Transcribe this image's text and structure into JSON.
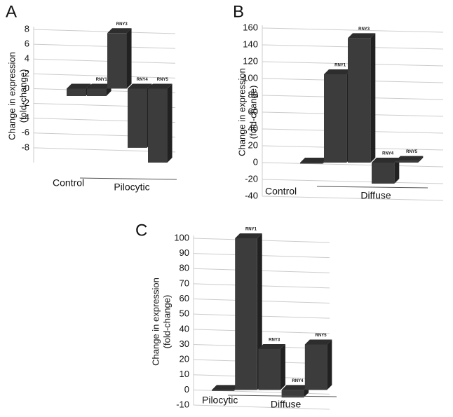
{
  "chart_data": [
    {
      "type": "bar3d",
      "panel": "A",
      "ylabel": [
        "Change in expression",
        "(fold-change)"
      ],
      "categories": [
        "Control",
        "RNY1",
        "RNY3",
        "RNY4",
        "RNY5"
      ],
      "values": [
        -1,
        -1,
        7.5,
        -8,
        -10
      ],
      "group_label": "Pilocytic",
      "color": "#3c3c3c",
      "ylim": [
        -10,
        8
      ],
      "yticks": [
        8,
        6,
        4,
        2,
        0,
        -2,
        -4,
        -6,
        -8
      ],
      "grid": true
    },
    {
      "type": "bar3d",
      "panel": "B",
      "ylabel": [
        "Change in expression",
        "(fold-change)"
      ],
      "categories": [
        "Control",
        "RNY1",
        "RNY3",
        "RNY4",
        "RNY5"
      ],
      "values": [
        0,
        105,
        148,
        -25,
        2
      ],
      "group_label": "Diffuse",
      "color": "#3c3c3c",
      "ylim": [
        -40,
        160
      ],
      "yticks": [
        160,
        140,
        120,
        100,
        80,
        60,
        40,
        20,
        0,
        -20,
        -40
      ],
      "grid": true
    },
    {
      "type": "bar3d",
      "panel": "C",
      "ylabel": [
        "Change in expression",
        "(fold-change)"
      ],
      "categories": [
        "Pilocytic",
        "RNY1",
        "RNY3",
        "RNY4",
        "RNY5"
      ],
      "values": [
        0,
        100,
        27,
        -5,
        30
      ],
      "group_label": "Diffuse",
      "color": "#3c3c3c",
      "ylim": [
        -10,
        100
      ],
      "yticks": [
        100,
        90,
        80,
        70,
        60,
        50,
        40,
        30,
        20,
        10,
        0,
        -10
      ],
      "grid": true
    }
  ]
}
